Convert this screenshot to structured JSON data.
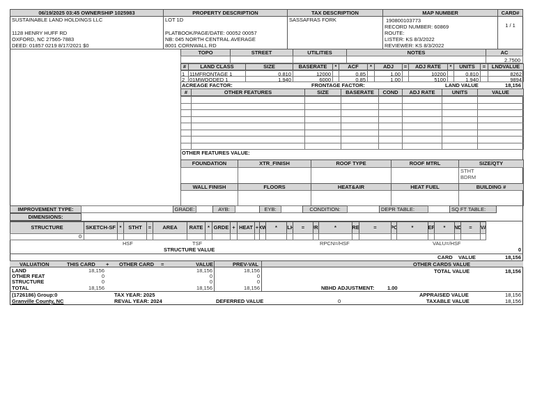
{
  "header": {
    "date_owner": "06/19/2025 03:45   OWNERSHIP  1025983",
    "property_description": "PROPERTY DESCRIPTION",
    "tax_description": "TAX DESCRIPTION",
    "map_number": "MAP NUMBER",
    "card_no": "CARD#"
  },
  "owner": {
    "name": "SUSTAINABLE LAND HOLDINGS LLC",
    "address1": "1128 HENRY HUFF RD",
    "address2": "OXFORD, NC 27565-7883",
    "deed": "DEED: 01857 0219 8/17/2021 $0"
  },
  "property": {
    "lot": "LOT 1D",
    "platbook": "PLATBOOK/PAGE/DATE: 00052 00057",
    "nb": "NB: 045 NORTH CENTRAL AVERAGE",
    "address": "8001 CORNWALL RD"
  },
  "tax": {
    "description": "SASSAFRAS FORK"
  },
  "map": {
    "number": "190800103773",
    "record": "RECORD NUMBER:  60869",
    "route": "ROUTE:",
    "lister": "LISTER:  KS 8/3/2022",
    "reviewer": "REVIEWER:  KS 8/3/2022"
  },
  "card": {
    "value": "1 / 1"
  },
  "site": {
    "headers": [
      "TOPO",
      "STREET",
      "UTILITIES",
      "NOTES",
      "AC"
    ],
    "ac": "2.7500"
  },
  "land": {
    "headers": [
      "#",
      "LAND CLASS",
      "SIZE",
      "BASERATE",
      "*",
      "ACF",
      "*",
      "ADJ",
      "=",
      "ADJ RATE",
      "*",
      "UNITS",
      "=",
      "LNDVALUE"
    ],
    "rows": [
      [
        "1",
        "11MFRONTAGE 1",
        "0.810",
        "12000",
        "",
        "0.85",
        "",
        "1.00",
        "",
        "10200",
        "",
        "0.810",
        "",
        "8262"
      ],
      [
        "2",
        "01MWOODED 1",
        "1.940",
        "6000",
        "",
        "0.85",
        "",
        "1.00",
        "",
        "5100",
        "",
        "1.940",
        "",
        "9894"
      ]
    ],
    "acreage_factor": "ACREAGE FACTOR:",
    "frontage_factor": "FRONTAGE FACTOR:",
    "land_value_label": "LAND VALUE",
    "land_value": "18,156"
  },
  "features": {
    "headers": [
      "#",
      "OTHER FEATURES",
      "SIZE",
      "BASERATE",
      "COND",
      "ADJ RATE",
      "UNITS",
      "VALUE"
    ],
    "value_label": "OTHER FEATURES VALUE:"
  },
  "building": {
    "headers1": [
      "FOUNDATION",
      "XTR_FINISH",
      "ROOF TYPE",
      "ROOF MTRL",
      "SIZE/QTY"
    ],
    "size_qty": [
      "STHT",
      "BDRM"
    ],
    "headers2": [
      "WALL FINISH",
      "FLOORS",
      "HEAT&AIR",
      "HEAT FUEL",
      "BUILDING #"
    ]
  },
  "improvement": {
    "type_label": "IMPROVEMENT TYPE:",
    "grade": "GRADE:",
    "ayb": "AYB:",
    "eyb": "EYB:",
    "condition": "CONDITION:",
    "depr": "DEPR TABLE:",
    "sqft": "SQ FT TABLE:",
    "dimensions": "DIMENSIONS:"
  },
  "structure": {
    "headers": [
      "STRUCTURE",
      "SKETCH-SF",
      "*",
      "STHT",
      "=",
      "AREA",
      "RATE",
      "*",
      "GRDE",
      "+",
      "HEAT",
      "+",
      "EXWL",
      "*",
      "WLHT",
      "=",
      "ADJRATE",
      "*",
      "AREA",
      "=",
      "RPCN",
      "*",
      "DEPF",
      "*",
      "CNDF",
      "=",
      "STR-VALUE"
    ],
    "row_value": "0",
    "hsf": "HSF",
    "tsf": "TSF",
    "rpcn": "RPCN=/HSF",
    "valu": "VALU=/HSF",
    "structure_value_label": "STRUCTURE VALUE",
    "structure_value": "0"
  },
  "card_value": {
    "label": "CARD    VALUE",
    "value": "18,156"
  },
  "valuation": {
    "headers": [
      "VALUATION",
      "THIS CARD",
      "+",
      "OTHER CARD",
      "=",
      "VALUE",
      "PREV-VAL"
    ],
    "rows": [
      [
        "LAND",
        "18,156",
        "18,156",
        "18,156"
      ],
      [
        "OTHER FEAT",
        "0",
        "0",
        "0"
      ],
      [
        "STRUCTURE",
        "0",
        "0",
        "0"
      ],
      [
        "TOTAL",
        "18,156",
        "18,156",
        "18,156"
      ]
    ],
    "other_cards_label": "OTHER CARDS VALUE",
    "total_label": "TOTAL VALUE",
    "total": "18,156",
    "nbhd_label": "NBHD ADJUSTMENT:",
    "nbhd": "1.00"
  },
  "footer": {
    "group": "(1726186) Group:0",
    "county": "Granville County, NC",
    "tax_year": "TAX YEAR: 2025",
    "reval_year": "REVAL YEAR: 2024",
    "deferred_label": "DEFERRED VALUE",
    "deferred": "0",
    "appraised_label": "APPRAISED VALUE",
    "appraised": "18,156",
    "taxable_label": "TAXABLE VALUE",
    "taxable": "18,156"
  }
}
